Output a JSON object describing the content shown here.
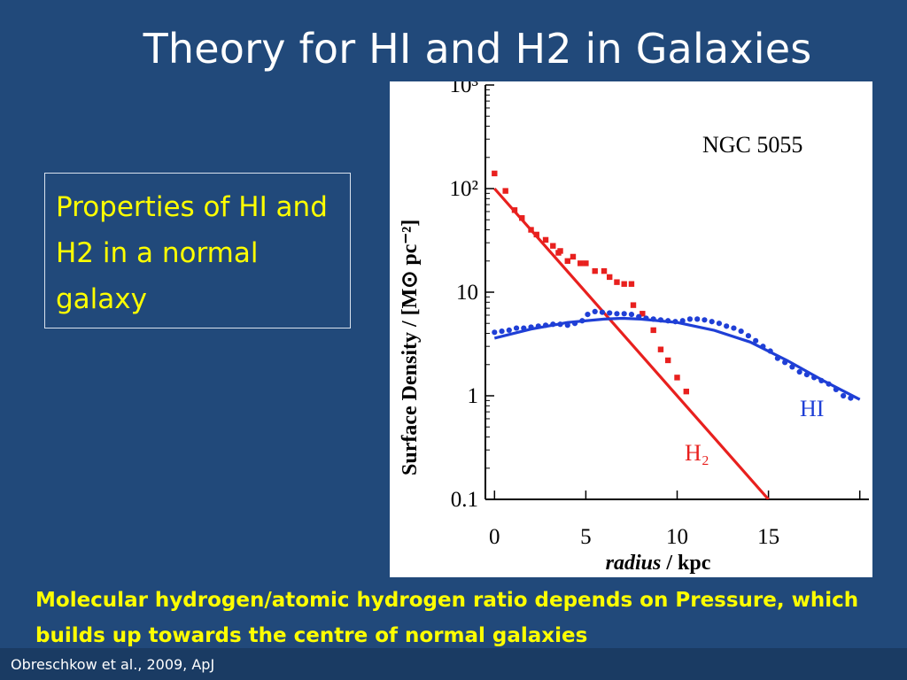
{
  "slide": {
    "title": "Theory for HI and H2 in Galaxies",
    "box_text": "Properties of HI and H2 in a normal galaxy",
    "caption": "Molecular hydrogen/atomic hydrogen ratio depends on Pressure, which builds up towards the centre of normal galaxies",
    "citation": "Obreschkow et al., 2009, ApJ"
  },
  "chart_data": {
    "type": "scatter",
    "annotation": "NGC 5055",
    "xlabel_italic": "radius",
    "xlabel_rest": " / kpc",
    "ylabel": "Surface Density / [M⊙ pc⁻²]",
    "x_ticks": [
      "0",
      "5",
      "10",
      "15"
    ],
    "x_tick_values": [
      0,
      5,
      10,
      15
    ],
    "y_ticks": [
      "10³",
      "10²",
      "10",
      "1",
      "0.1"
    ],
    "y_tick_values": [
      1000,
      100,
      10,
      1,
      0.1
    ],
    "xlim": [
      -0.5,
      20.5
    ],
    "ylim": [
      0.1,
      1000
    ],
    "yscale": "log",
    "label_h2": "H₂",
    "label_hi": "HI",
    "colors": {
      "h2": "#e8201e",
      "hi": "#1f3fd6",
      "axes": "#000000"
    },
    "series": [
      {
        "id": "h2",
        "points": [
          [
            0,
            140
          ],
          [
            0.6,
            95
          ],
          [
            1.1,
            62
          ],
          [
            1.5,
            52
          ],
          [
            2.0,
            40
          ],
          [
            2.3,
            36
          ],
          [
            2.8,
            32
          ],
          [
            3.2,
            28
          ],
          [
            3.5,
            24
          ],
          [
            3.6,
            25
          ],
          [
            4.0,
            20
          ],
          [
            4.3,
            22
          ],
          [
            4.7,
            19
          ],
          [
            5.0,
            19
          ],
          [
            5.5,
            16
          ],
          [
            6.0,
            16
          ],
          [
            6.3,
            14
          ],
          [
            6.7,
            12.5
          ],
          [
            7.1,
            12
          ],
          [
            7.5,
            12
          ],
          [
            7.6,
            7.5
          ],
          [
            8.1,
            6.2
          ],
          [
            8.7,
            4.3
          ],
          [
            9.1,
            2.8
          ],
          [
            9.5,
            2.2
          ],
          [
            10.0,
            1.5
          ],
          [
            10.5,
            1.1
          ]
        ],
        "fit": [
          [
            0,
            100
          ],
          [
            15,
            0.1
          ]
        ]
      },
      {
        "id": "hi",
        "points": [
          [
            0,
            4.1
          ],
          [
            0.4,
            4.2
          ],
          [
            0.8,
            4.3
          ],
          [
            1.2,
            4.5
          ],
          [
            1.6,
            4.5
          ],
          [
            2.0,
            4.6
          ],
          [
            2.4,
            4.7
          ],
          [
            2.8,
            4.8
          ],
          [
            3.2,
            4.9
          ],
          [
            3.6,
            4.9
          ],
          [
            4.0,
            4.8
          ],
          [
            4.4,
            5.0
          ],
          [
            4.8,
            5.3
          ],
          [
            5.1,
            6.1
          ],
          [
            5.5,
            6.5
          ],
          [
            5.9,
            6.4
          ],
          [
            6.3,
            6.3
          ],
          [
            6.7,
            6.2
          ],
          [
            7.1,
            6.2
          ],
          [
            7.5,
            6.1
          ],
          [
            7.9,
            5.8
          ],
          [
            8.3,
            5.6
          ],
          [
            8.7,
            5.5
          ],
          [
            9.1,
            5.4
          ],
          [
            9.5,
            5.3
          ],
          [
            9.9,
            5.2
          ],
          [
            10.3,
            5.3
          ],
          [
            10.7,
            5.5
          ],
          [
            11.1,
            5.5
          ],
          [
            11.5,
            5.4
          ],
          [
            11.9,
            5.2
          ],
          [
            12.3,
            5.0
          ],
          [
            12.7,
            4.7
          ],
          [
            13.1,
            4.5
          ],
          [
            13.5,
            4.2
          ],
          [
            13.9,
            3.8
          ],
          [
            14.3,
            3.4
          ],
          [
            14.7,
            3.0
          ],
          [
            15.1,
            2.7
          ],
          [
            15.5,
            2.3
          ],
          [
            15.9,
            2.1
          ],
          [
            16.3,
            1.9
          ],
          [
            16.7,
            1.7
          ],
          [
            17.1,
            1.6
          ],
          [
            17.5,
            1.5
          ],
          [
            17.9,
            1.4
          ],
          [
            18.3,
            1.3
          ],
          [
            18.7,
            1.15
          ],
          [
            19.1,
            1.0
          ],
          [
            19.5,
            0.95
          ]
        ],
        "fit": [
          [
            0,
            3.6
          ],
          [
            2,
            4.4
          ],
          [
            4,
            5.1
          ],
          [
            6,
            5.5
          ],
          [
            7,
            5.6
          ],
          [
            8,
            5.5
          ],
          [
            10,
            5.1
          ],
          [
            12,
            4.3
          ],
          [
            14,
            3.3
          ],
          [
            16,
            2.2
          ],
          [
            18,
            1.4
          ],
          [
            20,
            0.92
          ]
        ]
      }
    ]
  }
}
